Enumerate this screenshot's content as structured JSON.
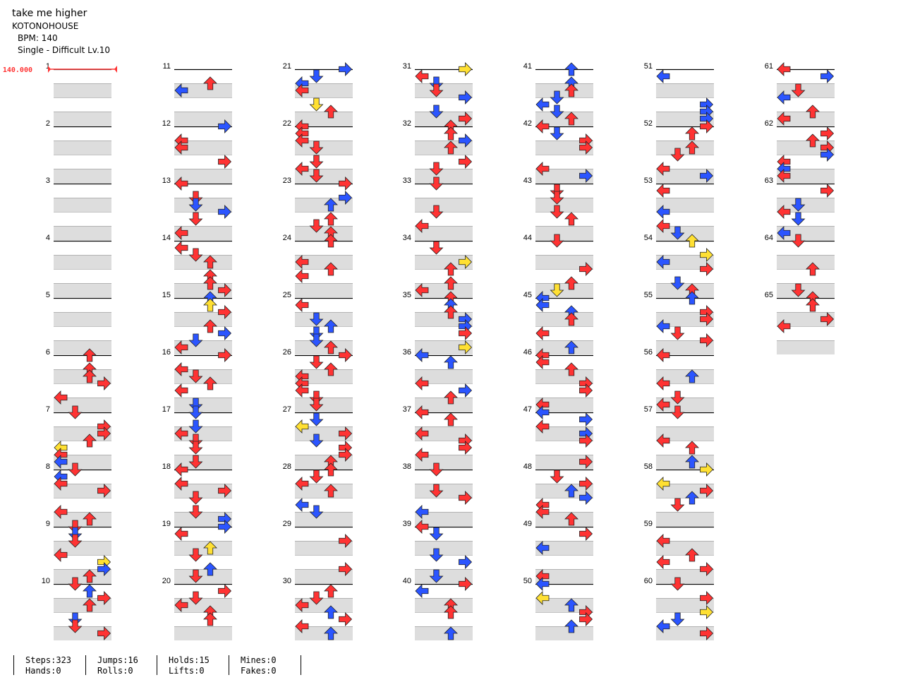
{
  "song": {
    "title": "take me higher",
    "artist": "KOTONOHOUSE",
    "bpm_text": "BPM: 140",
    "difficulty_text": "Single - Difficult Lv.10"
  },
  "bpm_marker": "140.000",
  "colors": {
    "red": "#ff3333",
    "blue": "#2b55ff",
    "yellow": "#ffe033",
    "green": "#66dd66",
    "band": "#dddddd",
    "bpm": "#ff3333"
  },
  "measures": [
    "1",
    "2",
    "3",
    "4",
    "5",
    "6",
    "7",
    "8",
    "9",
    "10",
    "11",
    "12",
    "13",
    "14",
    "15",
    "16",
    "17",
    "18",
    "19",
    "20",
    "21",
    "22",
    "23",
    "24",
    "25",
    "26",
    "27",
    "28",
    "29",
    "30",
    "31",
    "32",
    "33",
    "34",
    "35",
    "36",
    "37",
    "38",
    "39",
    "40",
    "41",
    "42",
    "43",
    "44",
    "45",
    "46",
    "47",
    "48",
    "49",
    "50",
    "51",
    "52",
    "53",
    "54",
    "55",
    "56",
    "57",
    "58",
    "59",
    "60",
    "61",
    "62",
    "63",
    "64",
    "65"
  ],
  "stats": {
    "steps": "Steps:323",
    "hands": "Hands:0",
    "jumps": "Jumps:16",
    "rolls": "Rolls:0",
    "holds": "Holds:15",
    "lifts": "Lifts:0",
    "mines": "Mines:0",
    "fakes": "Fakes:0"
  },
  "notes_description": "arrow notes per column rendered procedurally"
}
